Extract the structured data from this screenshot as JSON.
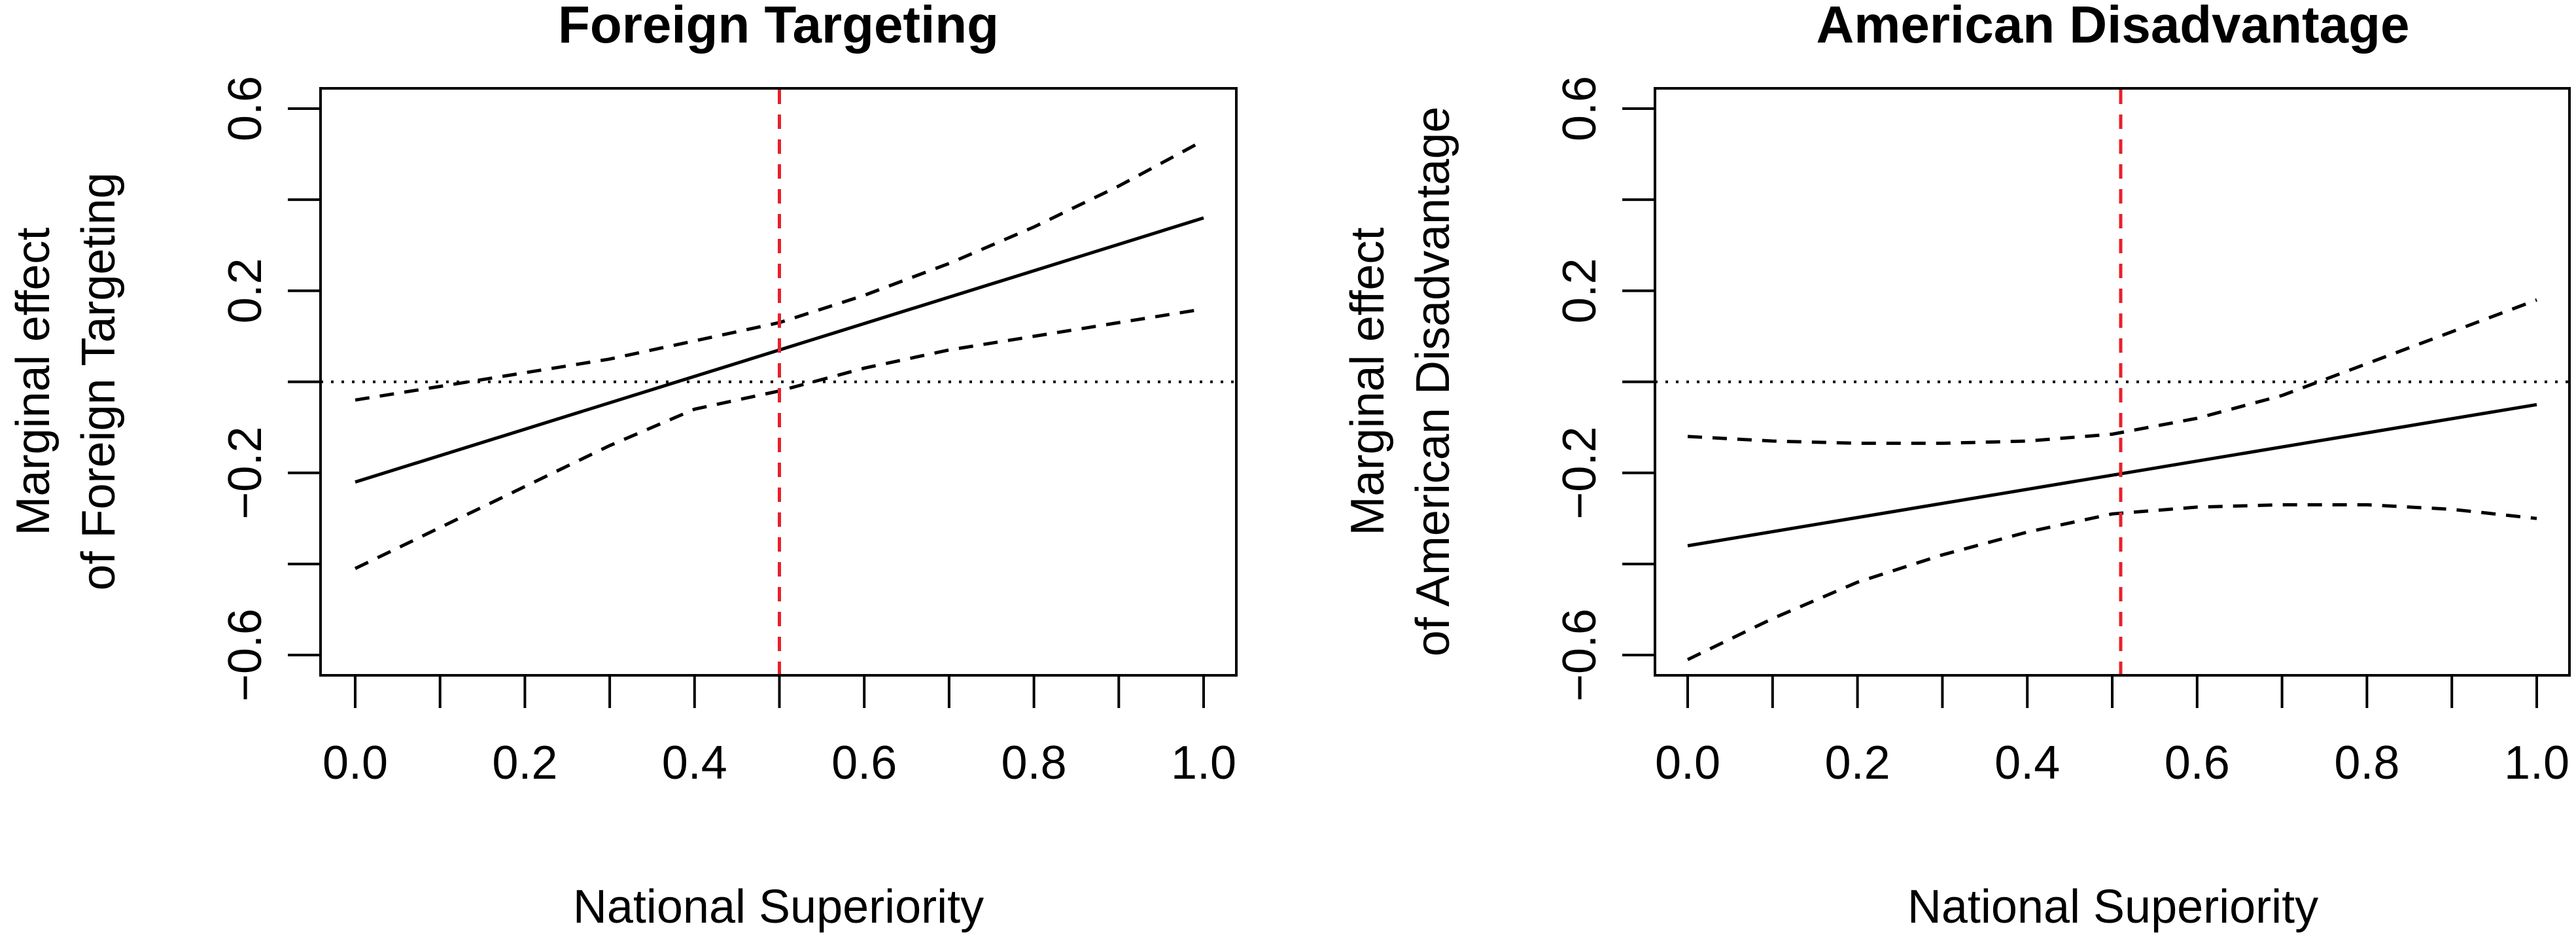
{
  "chart_data": [
    {
      "type": "line",
      "title": "Foreign Targeting",
      "xlabel": "National Superiority",
      "ylabel_line1": "Marginal effect",
      "ylabel_line2": "of Foreign Targeting",
      "xlim": [
        0.0,
        1.0
      ],
      "ylim": [
        -0.6,
        0.6
      ],
      "x_ticks": [
        "0.0",
        "0.2",
        "0.4",
        "0.6",
        "0.8",
        "1.0"
      ],
      "y_ticks": [
        "-0.6",
        "-0.2",
        "0.2",
        "0.6"
      ],
      "grid": false,
      "reference_line_y": 0,
      "cutoff_x": 0.5,
      "series": [
        {
          "role": "estimate",
          "style": "solid",
          "x": [
            0.0,
            1.0
          ],
          "y": [
            -0.22,
            0.36
          ]
        },
        {
          "role": "upper_ci",
          "style": "dashed",
          "x": [
            0.0,
            0.1,
            0.2,
            0.3,
            0.4,
            0.5,
            0.6,
            0.7,
            0.8,
            0.9,
            1.0
          ],
          "y": [
            -0.04,
            -0.01,
            0.02,
            0.05,
            0.09,
            0.13,
            0.19,
            0.26,
            0.34,
            0.43,
            0.53
          ]
        },
        {
          "role": "lower_ci",
          "style": "dashed",
          "x": [
            0.0,
            0.1,
            0.2,
            0.3,
            0.4,
            0.5,
            0.6,
            0.7,
            0.8,
            0.9,
            1.0
          ],
          "y": [
            -0.41,
            -0.32,
            -0.23,
            -0.14,
            -0.06,
            -0.02,
            0.03,
            0.07,
            0.1,
            0.13,
            0.16
          ]
        }
      ]
    },
    {
      "type": "line",
      "title": "American Disadvantage",
      "xlabel": "National Superiority",
      "ylabel_line1": "Marginal effect",
      "ylabel_line2": "of American Disadvantage",
      "xlim": [
        0.0,
        1.0
      ],
      "ylim": [
        -0.6,
        0.6
      ],
      "x_ticks": [
        "0.0",
        "0.2",
        "0.4",
        "0.6",
        "0.8",
        "1.0"
      ],
      "y_ticks": [
        "-0.6",
        "-0.2",
        "0.2",
        "0.6"
      ],
      "grid": false,
      "reference_line_y": 0,
      "cutoff_x": 0.51,
      "series": [
        {
          "role": "estimate",
          "style": "solid",
          "x": [
            0.0,
            1.0
          ],
          "y": [
            -0.36,
            -0.05
          ]
        },
        {
          "role": "upper_ci",
          "style": "dashed",
          "x": [
            0.0,
            0.1,
            0.2,
            0.3,
            0.4,
            0.5,
            0.6,
            0.7,
            0.8,
            0.9,
            1.0
          ],
          "y": [
            -0.12,
            -0.13,
            -0.135,
            -0.135,
            -0.13,
            -0.115,
            -0.08,
            -0.03,
            0.04,
            0.11,
            0.18
          ]
        },
        {
          "role": "lower_ci",
          "style": "dashed",
          "x": [
            0.0,
            0.1,
            0.2,
            0.3,
            0.4,
            0.5,
            0.6,
            0.7,
            0.8,
            0.9,
            1.0
          ],
          "y": [
            -0.61,
            -0.52,
            -0.44,
            -0.38,
            -0.33,
            -0.29,
            -0.275,
            -0.27,
            -0.27,
            -0.28,
            -0.3
          ]
        }
      ]
    }
  ],
  "colors": {
    "cutoff_line": "#e8202a",
    "estimate_line": "#000000",
    "ci_line": "#000000",
    "reference_line": "#000000"
  }
}
